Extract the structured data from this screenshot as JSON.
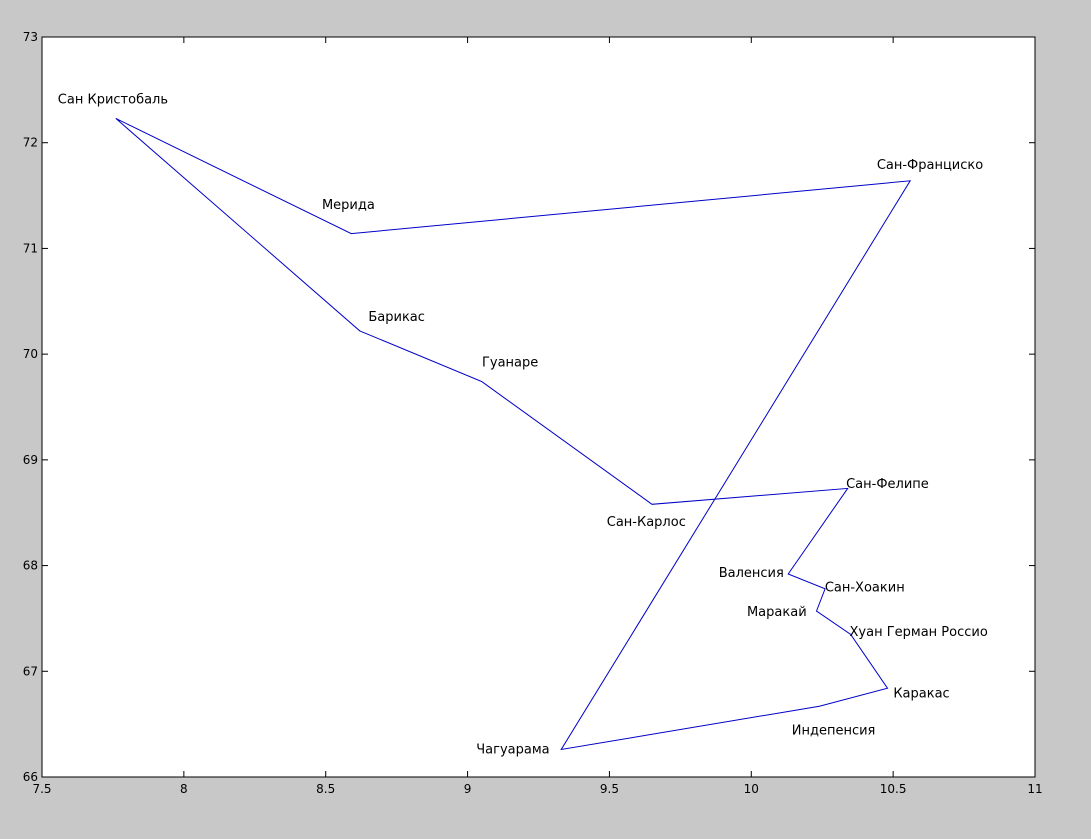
{
  "chart_data": {
    "type": "line",
    "title": "",
    "xlabel": "",
    "ylabel": "",
    "xlim": [
      7.5,
      11
    ],
    "ylim": [
      66,
      73
    ],
    "grid": false,
    "x_ticks": [
      "7.5",
      "8",
      "8.5",
      "9",
      "9.5",
      "10",
      "10.5",
      "11"
    ],
    "y_ticks": [
      "66",
      "67",
      "68",
      "69",
      "70",
      "71",
      "72",
      "73"
    ],
    "line_color": "#0000c8",
    "route": [
      {
        "name": "Сан Кристобаль",
        "x": 7.76,
        "y": 72.23,
        "label_x": 7.75,
        "label_y": 72.42
      },
      {
        "name": "Мерида",
        "x": 8.59,
        "y": 71.14,
        "label_x": 8.58,
        "label_y": 71.42
      },
      {
        "name": "Сан-Франциско",
        "x": 10.56,
        "y": 71.64,
        "label_x": 10.63,
        "label_y": 71.8
      },
      {
        "name": "Чагуарама",
        "x": 9.33,
        "y": 66.26,
        "label_x": 9.16,
        "label_y": 66.27
      },
      {
        "name": "Индепенсия",
        "x": 10.24,
        "y": 66.67,
        "label_x": 10.29,
        "label_y": 66.45
      },
      {
        "name": "Каракас",
        "x": 10.48,
        "y": 66.84,
        "label_x": 10.6,
        "label_y": 66.8
      },
      {
        "name": "Хуан Герман Россио",
        "x": 10.35,
        "y": 67.35,
        "label_x": 10.59,
        "label_y": 67.38
      },
      {
        "name": "Маракай",
        "x": 10.23,
        "y": 67.57,
        "label_x": 10.09,
        "label_y": 67.57
      },
      {
        "name": "Сан-Хоакин",
        "x": 10.26,
        "y": 67.78,
        "label_x": 10.4,
        "label_y": 67.8
      },
      {
        "name": "Валенсия",
        "x": 10.13,
        "y": 67.92,
        "label_x": 10.0,
        "label_y": 67.94
      },
      {
        "name": "Сан-Фелипе",
        "x": 10.34,
        "y": 68.73,
        "label_x": 10.48,
        "label_y": 68.78
      },
      {
        "name": "Сан-Карлос",
        "x": 9.65,
        "y": 68.58,
        "label_x": 9.63,
        "label_y": 68.42
      },
      {
        "name": "Гуанаре",
        "x": 9.05,
        "y": 69.74,
        "label_x": 9.15,
        "label_y": 69.93
      },
      {
        "name": "Барикас",
        "x": 8.62,
        "y": 70.22,
        "label_x": 8.75,
        "label_y": 70.36
      },
      {
        "name": "Сан Кристобаль",
        "x": 7.76,
        "y": 72.23,
        "label_x": null,
        "label_y": null
      }
    ]
  }
}
